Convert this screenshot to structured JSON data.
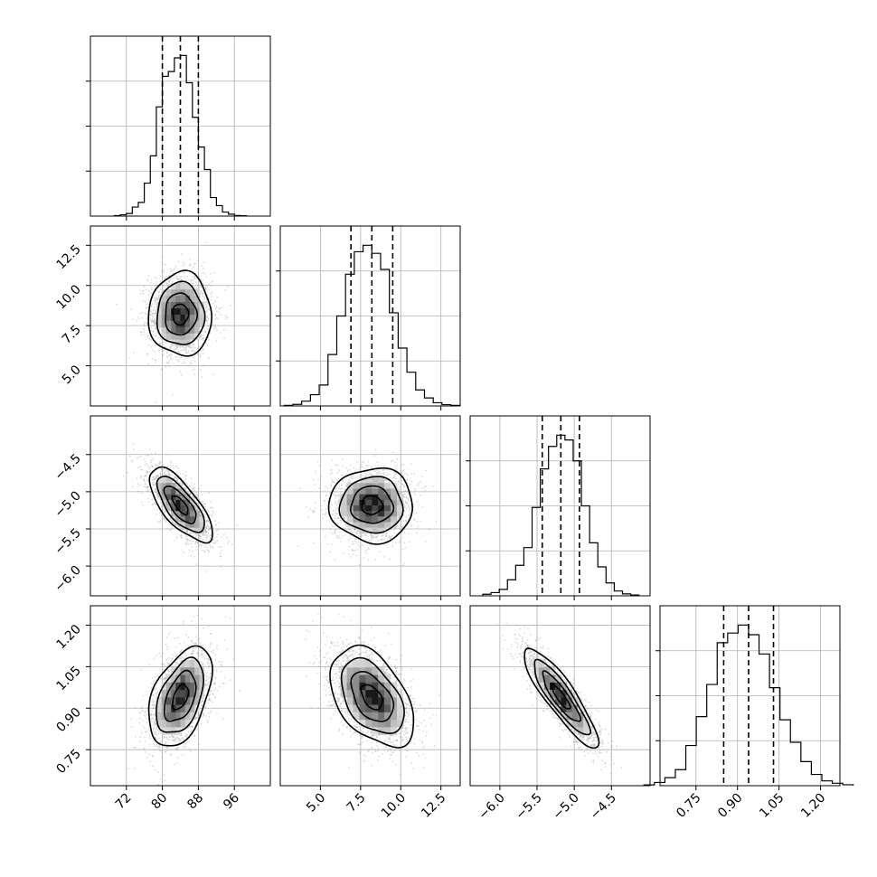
{
  "chart_data": {
    "type": "corner",
    "parameters": [
      {
        "mean": 84,
        "sd": 3.5,
        "range": [
          64,
          104
        ],
        "ticks": [
          72,
          80,
          88,
          96
        ],
        "tick_labels": [
          "72",
          "80",
          "88",
          "96"
        ]
      },
      {
        "mean": 8.2,
        "sd": 1.3,
        "range": [
          2.5,
          13.7
        ],
        "ticks": [
          5.0,
          7.5,
          10.0,
          12.5
        ],
        "tick_labels": [
          "5.0",
          "7.5",
          "10.0",
          "12.5"
        ]
      },
      {
        "mean": -5.18,
        "sd": 0.25,
        "range": [
          -6.4,
          -3.98
        ],
        "ticks": [
          -6.0,
          -5.5,
          -5.0,
          -4.5
        ],
        "tick_labels": [
          "−6.0",
          "−5.5",
          "−5.0",
          "−4.5"
        ]
      },
      {
        "mean": 0.94,
        "sd": 0.09,
        "range": [
          0.62,
          1.27
        ],
        "ticks": [
          0.75,
          0.9,
          1.05,
          1.2
        ],
        "tick_labels": [
          "0.75",
          "0.90",
          "1.05",
          "1.20"
        ]
      }
    ],
    "quantiles": [
      0.16,
      0.5,
      0.84
    ],
    "quantile_values": [
      [
        80.0,
        84.0,
        88.0
      ],
      [
        6.9,
        8.2,
        9.5
      ],
      [
        -5.43,
        -5.18,
        -4.93
      ],
      [
        0.85,
        0.94,
        1.03
      ]
    ],
    "correlations": {
      "1-0": 0.0,
      "2-0": -0.72,
      "2-1": 0.0,
      "3-0": 0.45,
      "3-1": -0.45,
      "3-2": -0.88
    },
    "histograms": [
      [
        0.003,
        0.008,
        0.016,
        0.056,
        0.085,
        0.205,
        0.375,
        0.68,
        0.87,
        0.9,
        0.985,
        1.0,
        0.83,
        0.615,
        0.43,
        0.29,
        0.115,
        0.065,
        0.025,
        0.012,
        0.004,
        0.002
      ],
      [
        0.004,
        0.01,
        0.03,
        0.07,
        0.13,
        0.32,
        0.56,
        0.82,
        0.96,
        1.0,
        0.95,
        0.85,
        0.58,
        0.36,
        0.21,
        0.1,
        0.05,
        0.02,
        0.008,
        0.004
      ],
      [
        0.01,
        0.02,
        0.04,
        0.1,
        0.19,
        0.3,
        0.55,
        0.79,
        0.93,
        1.0,
        0.97,
        0.84,
        0.56,
        0.33,
        0.18,
        0.08,
        0.03,
        0.012,
        0.005
      ],
      [
        0.005,
        0.02,
        0.05,
        0.1,
        0.25,
        0.43,
        0.63,
        0.89,
        0.95,
        1.0,
        0.94,
        0.82,
        0.61,
        0.41,
        0.27,
        0.15,
        0.07,
        0.03,
        0.015,
        0.006
      ]
    ],
    "hist_ylim_factor": 1.12,
    "contour_levels": [
      0.5,
      1.0,
      1.5,
      2.0
    ],
    "scatter_points_per_panel": 2000,
    "grid": true,
    "colors": {
      "line": "#000000",
      "grid": "#b0b0b0",
      "scatter": "#9a9a9a",
      "density": "#000000"
    }
  }
}
